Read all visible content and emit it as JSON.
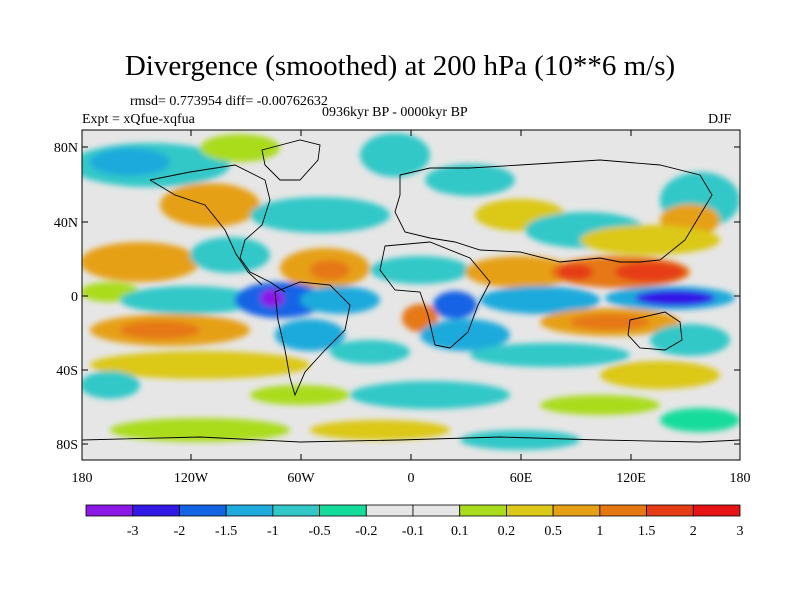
{
  "title": "Divergence (smoothed) at 200 hPa (10**6 m/s)",
  "stats": "rmsd= 0.773954 diff= -0.00762632",
  "experiment": "Expt = xQfue-xqfua",
  "period": "0936kyr BP - 0000kyr BP",
  "season": "DJF",
  "axes": {
    "y_ticks": [
      "80N",
      "40N",
      "0",
      "40S",
      "80S"
    ],
    "x_ticks": [
      "180",
      "120W",
      "60W",
      "0",
      "60E",
      "120E",
      "180"
    ]
  },
  "colorbar": {
    "labels": [
      "-3",
      "-2",
      "-1.5",
      "-1",
      "-0.5",
      "-0.2",
      "-0.1",
      "0.1",
      "0.2",
      "0.5",
      "1",
      "1.5",
      "2",
      "3"
    ],
    "colors": [
      "#8c19e6",
      "#3219e6",
      "#1464e6",
      "#1eaadc",
      "#32c8c8",
      "#14dc9b",
      "#e6e6e6",
      "#e6e6e6",
      "#aadc1e",
      "#dcc819",
      "#e6a014",
      "#e67814",
      "#e63c14",
      "#e61414"
    ]
  },
  "map_colors": {
    "ocean_neutral": "#e6e6e6",
    "neg_weak": "#14dc9b",
    "neg_mid": "#32c8c8",
    "neg": "#1eaadc",
    "neg_strong": "#1464e6",
    "neg_max": "#3219e6",
    "neg_extreme": "#8c19e6",
    "pos_weak": "#aadc1e",
    "pos_mid": "#dcc819",
    "pos": "#e6a014",
    "pos_strong": "#e67814",
    "pos_max": "#e63c14",
    "pos_extreme": "#e61414"
  }
}
